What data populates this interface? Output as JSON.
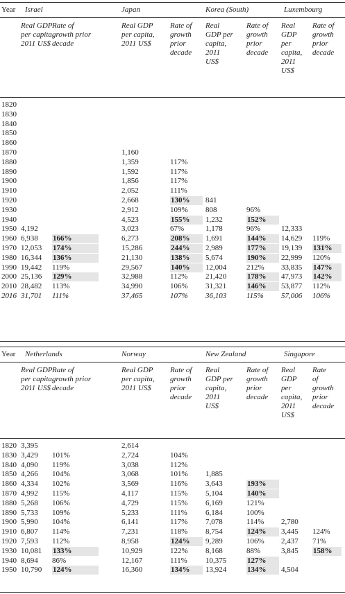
{
  "table1": {
    "year_label": "Year",
    "countries": [
      "Israel",
      "Japan",
      "Korea (South)",
      "Luxembourg"
    ],
    "col_headers": [
      [
        "Real GDP",
        "per capita,",
        "2011 US$"
      ],
      [
        "Rate of",
        "growth prior",
        "decade"
      ],
      [
        "Real GDP",
        "per capita,",
        "2011 US$"
      ],
      [
        "Rate of",
        "growth",
        "prior",
        "decade"
      ],
      [
        "Real",
        "GDP per",
        "capita,",
        "2011",
        "US$"
      ],
      [
        "Rate of",
        "growth",
        "prior",
        "decade"
      ],
      [
        "Real",
        "GDP",
        "per",
        "capita,",
        "2011",
        "US$"
      ],
      [
        "Rate of",
        "growth",
        "prior",
        "decade"
      ]
    ],
    "rows": [
      {
        "year": "1820",
        "cells": [
          "",
          "",
          "",
          "",
          "",
          "",
          "",
          ""
        ]
      },
      {
        "year": "1830",
        "cells": [
          "",
          "",
          "",
          "",
          "",
          "",
          "",
          ""
        ]
      },
      {
        "year": "1840",
        "cells": [
          "",
          "",
          "",
          "",
          "",
          "",
          "",
          ""
        ]
      },
      {
        "year": "1850",
        "cells": [
          "",
          "",
          "",
          "",
          "",
          "",
          "",
          ""
        ]
      },
      {
        "year": "1860",
        "cells": [
          "",
          "",
          "",
          "",
          "",
          "",
          "",
          ""
        ]
      },
      {
        "year": "1870",
        "cells": [
          "",
          "",
          "1,160",
          "",
          "",
          "",
          "",
          ""
        ]
      },
      {
        "year": "1880",
        "cells": [
          "",
          "",
          "1,359",
          "117%",
          "",
          "",
          "",
          ""
        ]
      },
      {
        "year": "1890",
        "cells": [
          "",
          "",
          "1,592",
          "117%",
          "",
          "",
          "",
          ""
        ]
      },
      {
        "year": "1900",
        "cells": [
          "",
          "",
          "1,856",
          "117%",
          "",
          "",
          "",
          ""
        ]
      },
      {
        "year": "1910",
        "cells": [
          "",
          "",
          "2,052",
          "111%",
          "",
          "",
          "",
          ""
        ]
      },
      {
        "year": "1920",
        "cells": [
          "",
          "",
          "2,668",
          "130%",
          "841",
          "",
          "",
          ""
        ]
      },
      {
        "year": "1930",
        "cells": [
          "",
          "",
          "2,912",
          "109%",
          "808",
          "96%",
          "",
          ""
        ]
      },
      {
        "year": "1940",
        "cells": [
          "",
          "",
          "4,523",
          "155%",
          "1,232",
          "152%",
          "",
          ""
        ]
      },
      {
        "year": "1950",
        "cells": [
          "4,192",
          "",
          "3,023",
          "67%",
          "1,178",
          "96%",
          "12,333",
          ""
        ]
      },
      {
        "year": "1960",
        "cells": [
          "6,938",
          "166%",
          "6,273",
          "208%",
          "1,691",
          "144%",
          "14,629",
          "119%"
        ]
      },
      {
        "year": "1970",
        "cells": [
          "12,053",
          "174%",
          "15,286",
          "244%",
          "2,989",
          "177%",
          "19,139",
          "131%"
        ]
      },
      {
        "year": "1980",
        "cells": [
          "16,344",
          "136%",
          "21,130",
          "138%",
          "5,674",
          "190%",
          "22,999",
          "120%"
        ]
      },
      {
        "year": "1990",
        "cells": [
          "19,442",
          "119%",
          "29,567",
          "140%",
          "12,004",
          "212%",
          "33,835",
          "147%"
        ]
      },
      {
        "year": "2000",
        "cells": [
          "25,136",
          "129%",
          "32,988",
          "112%",
          "21,420",
          "178%",
          "47,973",
          "142%"
        ]
      },
      {
        "year": "2010",
        "cells": [
          "28,482",
          "113%",
          "34,990",
          "106%",
          "31,321",
          "146%",
          "53,877",
          "112%"
        ]
      },
      {
        "year": "2016",
        "cells": [
          "31,701",
          "111%",
          "37,465",
          "107%",
          "36,103",
          "115%",
          "57,006",
          "106%"
        ]
      }
    ],
    "highlights": [
      [
        10,
        3
      ],
      [
        12,
        3
      ],
      [
        12,
        5
      ],
      [
        14,
        1
      ],
      [
        14,
        3
      ],
      [
        14,
        5
      ],
      [
        15,
        1
      ],
      [
        15,
        3
      ],
      [
        15,
        5
      ],
      [
        15,
        7
      ],
      [
        16,
        1
      ],
      [
        16,
        3
      ],
      [
        16,
        5
      ],
      [
        17,
        3
      ],
      [
        17,
        7
      ],
      [
        18,
        1
      ],
      [
        18,
        5
      ],
      [
        18,
        7
      ],
      [
        19,
        5
      ]
    ]
  },
  "table2": {
    "year_label": "Year",
    "countries": [
      "Netherlands",
      "Norway",
      "New Zealand",
      "Singapore"
    ],
    "col_headers": [
      [
        "Real GDP",
        "per capita,",
        "2011 US$"
      ],
      [
        "Rate of",
        "growth prior",
        "decade"
      ],
      [
        "Real GDP",
        "per capita,",
        "2011 US$"
      ],
      [
        "Rate of",
        "growth",
        "prior",
        "decade"
      ],
      [
        "Real",
        "GDP per",
        "capita,",
        "2011",
        "US$"
      ],
      [
        "Rate of",
        "growth",
        "prior",
        "decade"
      ],
      [
        "Real",
        "GDP",
        "per",
        "capita,",
        "2011",
        "US$"
      ],
      [
        "Rate",
        "of",
        "growth",
        "prior",
        "decade"
      ]
    ],
    "rows": [
      {
        "year": "1820",
        "cells": [
          "3,395",
          "",
          "2,614",
          "",
          "",
          "",
          "",
          ""
        ]
      },
      {
        "year": "1830",
        "cells": [
          "3,429",
          "101%",
          "2,724",
          "104%",
          "",
          "",
          "",
          ""
        ]
      },
      {
        "year": "1840",
        "cells": [
          "4,090",
          "119%",
          "3,038",
          "112%",
          "",
          "",
          "",
          ""
        ]
      },
      {
        "year": "1850",
        "cells": [
          "4,266",
          "104%",
          "3,068",
          "101%",
          "1,885",
          "",
          "",
          ""
        ]
      },
      {
        "year": "1860",
        "cells": [
          "4,334",
          "102%",
          "3,569",
          "116%",
          "3,643",
          "193%",
          "",
          ""
        ]
      },
      {
        "year": "1870",
        "cells": [
          "4,992",
          "115%",
          "4,117",
          "115%",
          "5,104",
          "140%",
          "",
          ""
        ]
      },
      {
        "year": "1880",
        "cells": [
          "5,268",
          "106%",
          "4,729",
          "115%",
          "6,169",
          "121%",
          "",
          ""
        ]
      },
      {
        "year": "1890",
        "cells": [
          "5,733",
          "109%",
          "5,233",
          "111%",
          "6,184",
          "100%",
          "",
          ""
        ]
      },
      {
        "year": "1900",
        "cells": [
          "5,990",
          "104%",
          "6,141",
          "117%",
          "7,078",
          "114%",
          "2,780",
          ""
        ]
      },
      {
        "year": "1910",
        "cells": [
          "6,807",
          "114%",
          "7,231",
          "118%",
          "8,754",
          "124%",
          "3,445",
          "124%"
        ]
      },
      {
        "year": "1920",
        "cells": [
          "7,593",
          "112%",
          "8,958",
          "124%",
          "9,289",
          "106%",
          "2,437",
          "71%"
        ]
      },
      {
        "year": "1930",
        "cells": [
          "10,081",
          "133%",
          "10,929",
          "122%",
          "8,168",
          "88%",
          "3,845",
          "158%"
        ]
      },
      {
        "year": "1940",
        "cells": [
          "8,694",
          "86%",
          "12,167",
          "111%",
          "10,375",
          "127%",
          "",
          ""
        ]
      },
      {
        "year": "1950",
        "cells": [
          "10,790",
          "124%",
          "16,360",
          "134%",
          "13,924",
          "134%",
          "4,504",
          ""
        ]
      }
    ],
    "highlights": [
      [
        4,
        5
      ],
      [
        5,
        5
      ],
      [
        9,
        5
      ],
      [
        10,
        3
      ],
      [
        11,
        1
      ],
      [
        11,
        7
      ],
      [
        12,
        5
      ],
      [
        13,
        1
      ],
      [
        13,
        3
      ],
      [
        13,
        5
      ]
    ]
  }
}
